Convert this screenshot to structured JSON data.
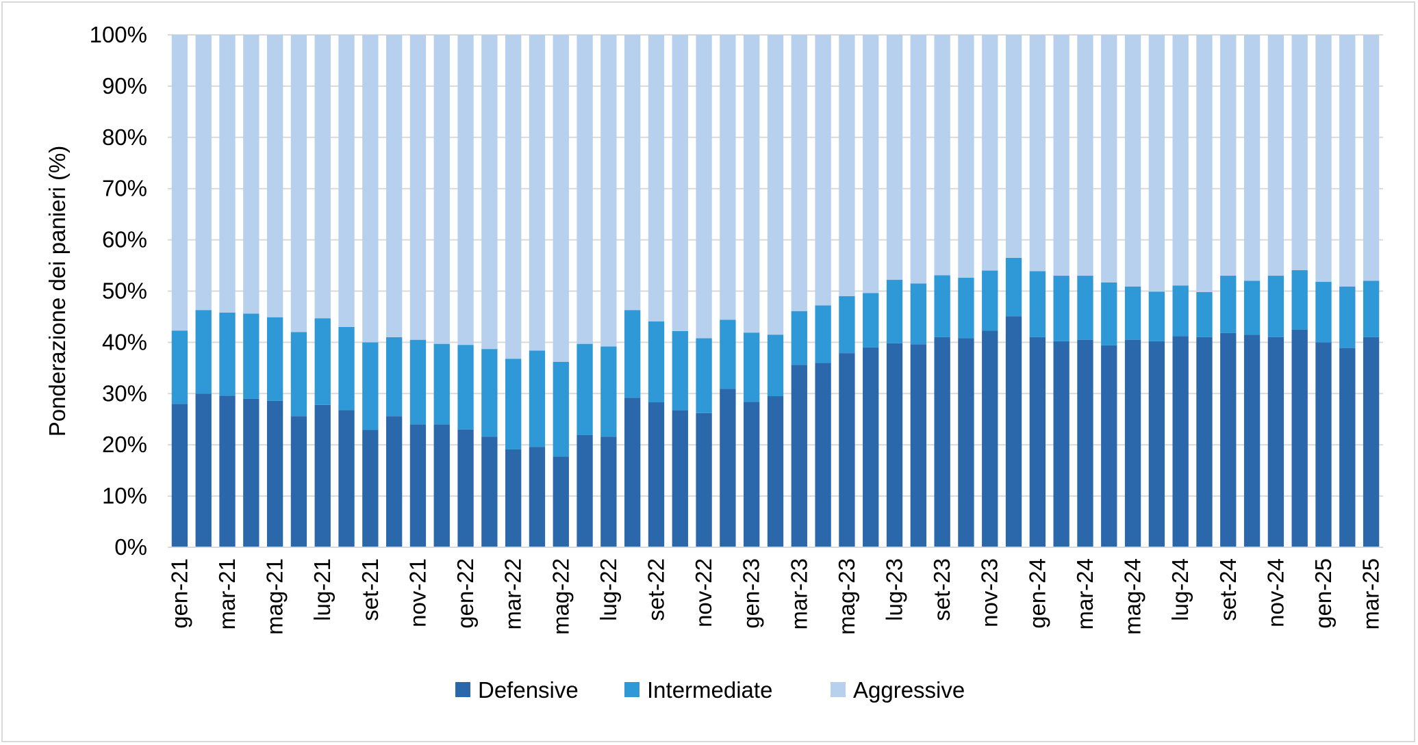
{
  "chart_data": {
    "type": "bar",
    "stacked": true,
    "title": "",
    "xlabel": "",
    "ylabel": "Ponderazione dei panieri (%)",
    "ylim": [
      0,
      100
    ],
    "yticks": [
      "0%",
      "10%",
      "20%",
      "30%",
      "40%",
      "50%",
      "60%",
      "70%",
      "80%",
      "90%",
      "100%"
    ],
    "categories": [
      "gen-21",
      "feb-21",
      "mar-21",
      "apr-21",
      "mag-21",
      "giu-21",
      "lug-21",
      "ago-21",
      "set-21",
      "ott-21",
      "nov-21",
      "dic-21",
      "gen-22",
      "feb-22",
      "mar-22",
      "apr-22",
      "mag-22",
      "giu-22",
      "lug-22",
      "ago-22",
      "set-22",
      "ott-22",
      "nov-22",
      "dic-22",
      "gen-23",
      "feb-23",
      "mar-23",
      "apr-23",
      "mag-23",
      "giu-23",
      "lug-23",
      "ago-23",
      "set-23",
      "ott-23",
      "nov-23",
      "dic-23",
      "gen-24",
      "feb-24",
      "mar-24",
      "apr-24",
      "mag-24",
      "giu-24",
      "lug-24",
      "ago-24",
      "set-24",
      "ott-24",
      "nov-24",
      "dic-24",
      "gen-25",
      "feb-25",
      "mar-25"
    ],
    "visible_tick_labels": [
      "gen-21",
      "mar-21",
      "mag-21",
      "lug-21",
      "set-21",
      "nov-21",
      "gen-22",
      "mar-22",
      "mag-22",
      "lug-22",
      "set-22",
      "nov-22",
      "gen-23",
      "mar-23",
      "mag-23",
      "lug-23",
      "set-23",
      "nov-23",
      "gen-24",
      "mar-24",
      "mag-24",
      "lug-24",
      "set-24",
      "nov-24",
      "gen-25",
      "mar-25"
    ],
    "series": [
      {
        "name": "Defensive",
        "color": "#2b67ab",
        "values": [
          28,
          30,
          29.6,
          29,
          28.6,
          25.6,
          27.8,
          26.8,
          22.9,
          25.6,
          24,
          24,
          23,
          21.6,
          19.1,
          19.6,
          17.7,
          21.9,
          21.6,
          29.2,
          28.3,
          26.7,
          26.2,
          30.9,
          28.4,
          29.5,
          35.6,
          36,
          37.9,
          39,
          39.8,
          39.6,
          41,
          40.8,
          42.3,
          45.1,
          41,
          40.2,
          40.5,
          39.4,
          40.5,
          40.2,
          41.2,
          41,
          41.8,
          41.5,
          41,
          42.5,
          40,
          38.9,
          41
        ]
      },
      {
        "name": "Intermediate",
        "color": "#2e99d6",
        "values": [
          14.3,
          16.3,
          16.2,
          16.6,
          16.3,
          16.4,
          16.9,
          16.2,
          17.1,
          15.4,
          16.5,
          15.7,
          16.5,
          17.1,
          17.7,
          18.8,
          18.5,
          17.8,
          17.6,
          17.1,
          15.8,
          15.5,
          14.6,
          13.5,
          13.5,
          12,
          10.5,
          11.2,
          11.1,
          10.6,
          12.4,
          11.9,
          12.1,
          11.8,
          11.7,
          11.4,
          12.9,
          12.8,
          12.5,
          12.3,
          10.4,
          9.7,
          9.9,
          8.8,
          11.2,
          10.5,
          12,
          11.6,
          11.8,
          12,
          11
        ]
      },
      {
        "name": "Aggressive",
        "color": "#b7d0ed",
        "values": [
          57.7,
          53.7,
          54.2,
          54.4,
          55.1,
          58,
          55.3,
          57,
          60,
          59,
          59.5,
          60.3,
          60.5,
          61.3,
          63.2,
          61.6,
          63.8,
          60.3,
          60.8,
          53.7,
          55.9,
          57.8,
          59.2,
          55.6,
          58.1,
          58.5,
          53.9,
          52.8,
          51,
          50.4,
          47.8,
          48.5,
          46.9,
          47.4,
          46,
          43.5,
          46.1,
          47,
          47,
          48.3,
          49.1,
          50.1,
          48.9,
          50.2,
          47,
          48,
          47,
          45.9,
          48.2,
          49.1,
          48
        ]
      }
    ],
    "legend": {
      "position": "bottom",
      "entries": [
        "Defensive",
        "Intermediate",
        "Aggressive"
      ]
    },
    "grid": true
  }
}
